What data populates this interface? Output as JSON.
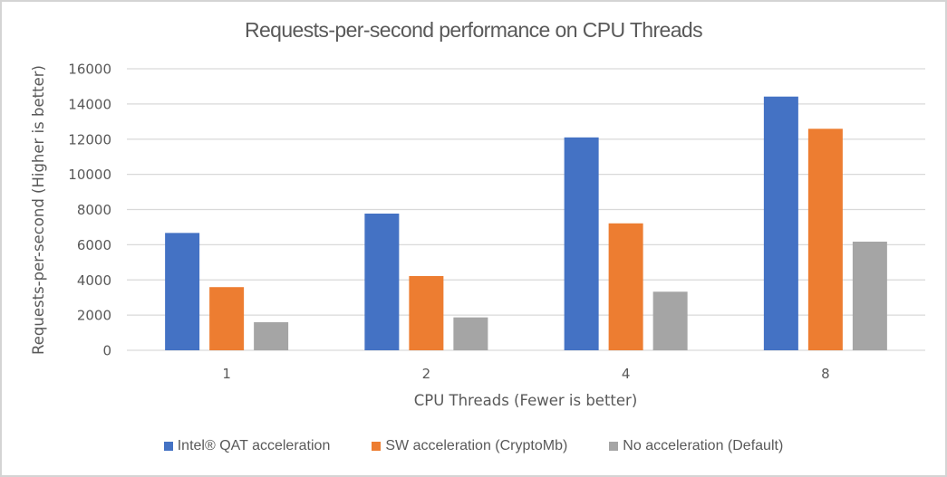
{
  "chart_data": {
    "type": "bar",
    "title": "Requests-per-second performance on CPU Threads",
    "xlabel": "CPU Threads (Fewer is better)",
    "ylabel": "Requests-per-second (Higher is better)",
    "categories": [
      "1",
      "2",
      "4",
      "8"
    ],
    "ylim": [
      0,
      16000
    ],
    "yticks": [
      0,
      2000,
      4000,
      6000,
      8000,
      10000,
      12000,
      14000,
      16000
    ],
    "ytick_labels": [
      "0",
      "2000",
      "4000",
      "6000",
      "8000",
      "10000",
      "12000",
      "14000",
      "16000"
    ],
    "grid": true,
    "legend_position": "bottom",
    "series": [
      {
        "name": "Intel® QAT acceleration",
        "color": "#4472c4",
        "values": [
          6670,
          7770,
          12100,
          14420
        ]
      },
      {
        "name": "SW acceleration (CryptoMb)",
        "color": "#ed7d31",
        "values": [
          3590,
          4220,
          7215,
          12590
        ]
      },
      {
        "name": "No acceleration (Default)",
        "color": "#a5a5a5",
        "values": [
          1595,
          1870,
          3330,
          6175
        ]
      }
    ]
  }
}
